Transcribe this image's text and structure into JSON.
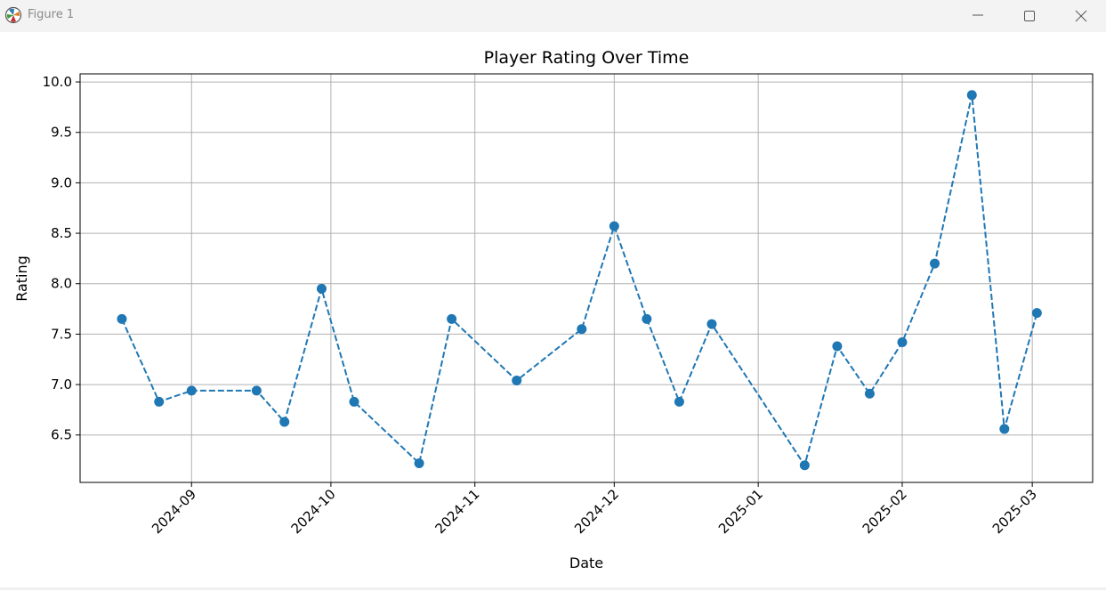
{
  "window": {
    "title": "Figure 1",
    "app_icon": "matplotlib-figure-icon",
    "controls": [
      "minimize-icon",
      "maximize-icon",
      "close-icon"
    ]
  },
  "colors": {
    "line": "#1f77b4",
    "grid": "#b0b0b0",
    "axes": "#000000",
    "titlebar": "#f3f3f3"
  },
  "chart_data": {
    "type": "line",
    "title": "Player Rating Over Time",
    "xlabel": "Date",
    "ylabel": "Rating",
    "line_style": "dashed",
    "marker": "circle",
    "grid": true,
    "x_tick_rotation": 45,
    "xlim": [
      "2024-08-08",
      "2025-03-14"
    ],
    "ylim": [
      6.03,
      10.08
    ],
    "x_ticks": [
      "2024-09",
      "2024-10",
      "2024-11",
      "2024-12",
      "2025-01",
      "2025-02",
      "2025-03"
    ],
    "y_ticks": [
      "6.5",
      "7.0",
      "7.5",
      "8.0",
      "8.5",
      "9.0",
      "9.5",
      "10.0"
    ],
    "points": [
      {
        "x": "2024-08-17",
        "y": 7.65
      },
      {
        "x": "2024-08-25",
        "y": 6.83
      },
      {
        "x": "2024-09-01",
        "y": 6.94
      },
      {
        "x": "2024-09-15",
        "y": 6.94
      },
      {
        "x": "2024-09-21",
        "y": 6.63
      },
      {
        "x": "2024-09-29",
        "y": 7.95
      },
      {
        "x": "2024-10-06",
        "y": 6.83
      },
      {
        "x": "2024-10-20",
        "y": 6.22
      },
      {
        "x": "2024-10-27",
        "y": 7.65
      },
      {
        "x": "2024-11-10",
        "y": 7.04
      },
      {
        "x": "2024-11-24",
        "y": 7.55
      },
      {
        "x": "2024-12-01",
        "y": 8.57
      },
      {
        "x": "2024-12-08",
        "y": 7.65
      },
      {
        "x": "2024-12-15",
        "y": 6.83
      },
      {
        "x": "2024-12-22",
        "y": 7.6
      },
      {
        "x": "2025-01-11",
        "y": 6.2
      },
      {
        "x": "2025-01-18",
        "y": 7.38
      },
      {
        "x": "2025-01-25",
        "y": 6.91
      },
      {
        "x": "2025-02-01",
        "y": 7.42
      },
      {
        "x": "2025-02-08",
        "y": 8.2
      },
      {
        "x": "2025-02-16",
        "y": 9.87
      },
      {
        "x": "2025-02-23",
        "y": 6.56
      },
      {
        "x": "2025-03-02",
        "y": 7.71
      }
    ]
  }
}
